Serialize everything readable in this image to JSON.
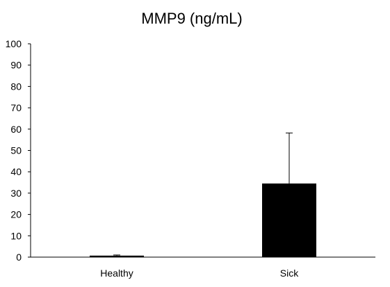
{
  "chart_data": {
    "type": "bar",
    "title": "MMP9 (ng/mL)",
    "xlabel": "",
    "ylabel": "",
    "categories": [
      "Healthy",
      "Sick"
    ],
    "values": [
      0.7,
      34.5
    ],
    "error_upper": [
      0.3,
      23.7
    ],
    "ylim": [
      0,
      100
    ],
    "yticks": [
      0,
      10,
      20,
      30,
      40,
      50,
      60,
      70,
      80,
      90,
      100
    ],
    "grid": false,
    "legend": "none",
    "bar_color": "#000000",
    "axis_color": "#000000",
    "error_bar_color": "#000000"
  }
}
